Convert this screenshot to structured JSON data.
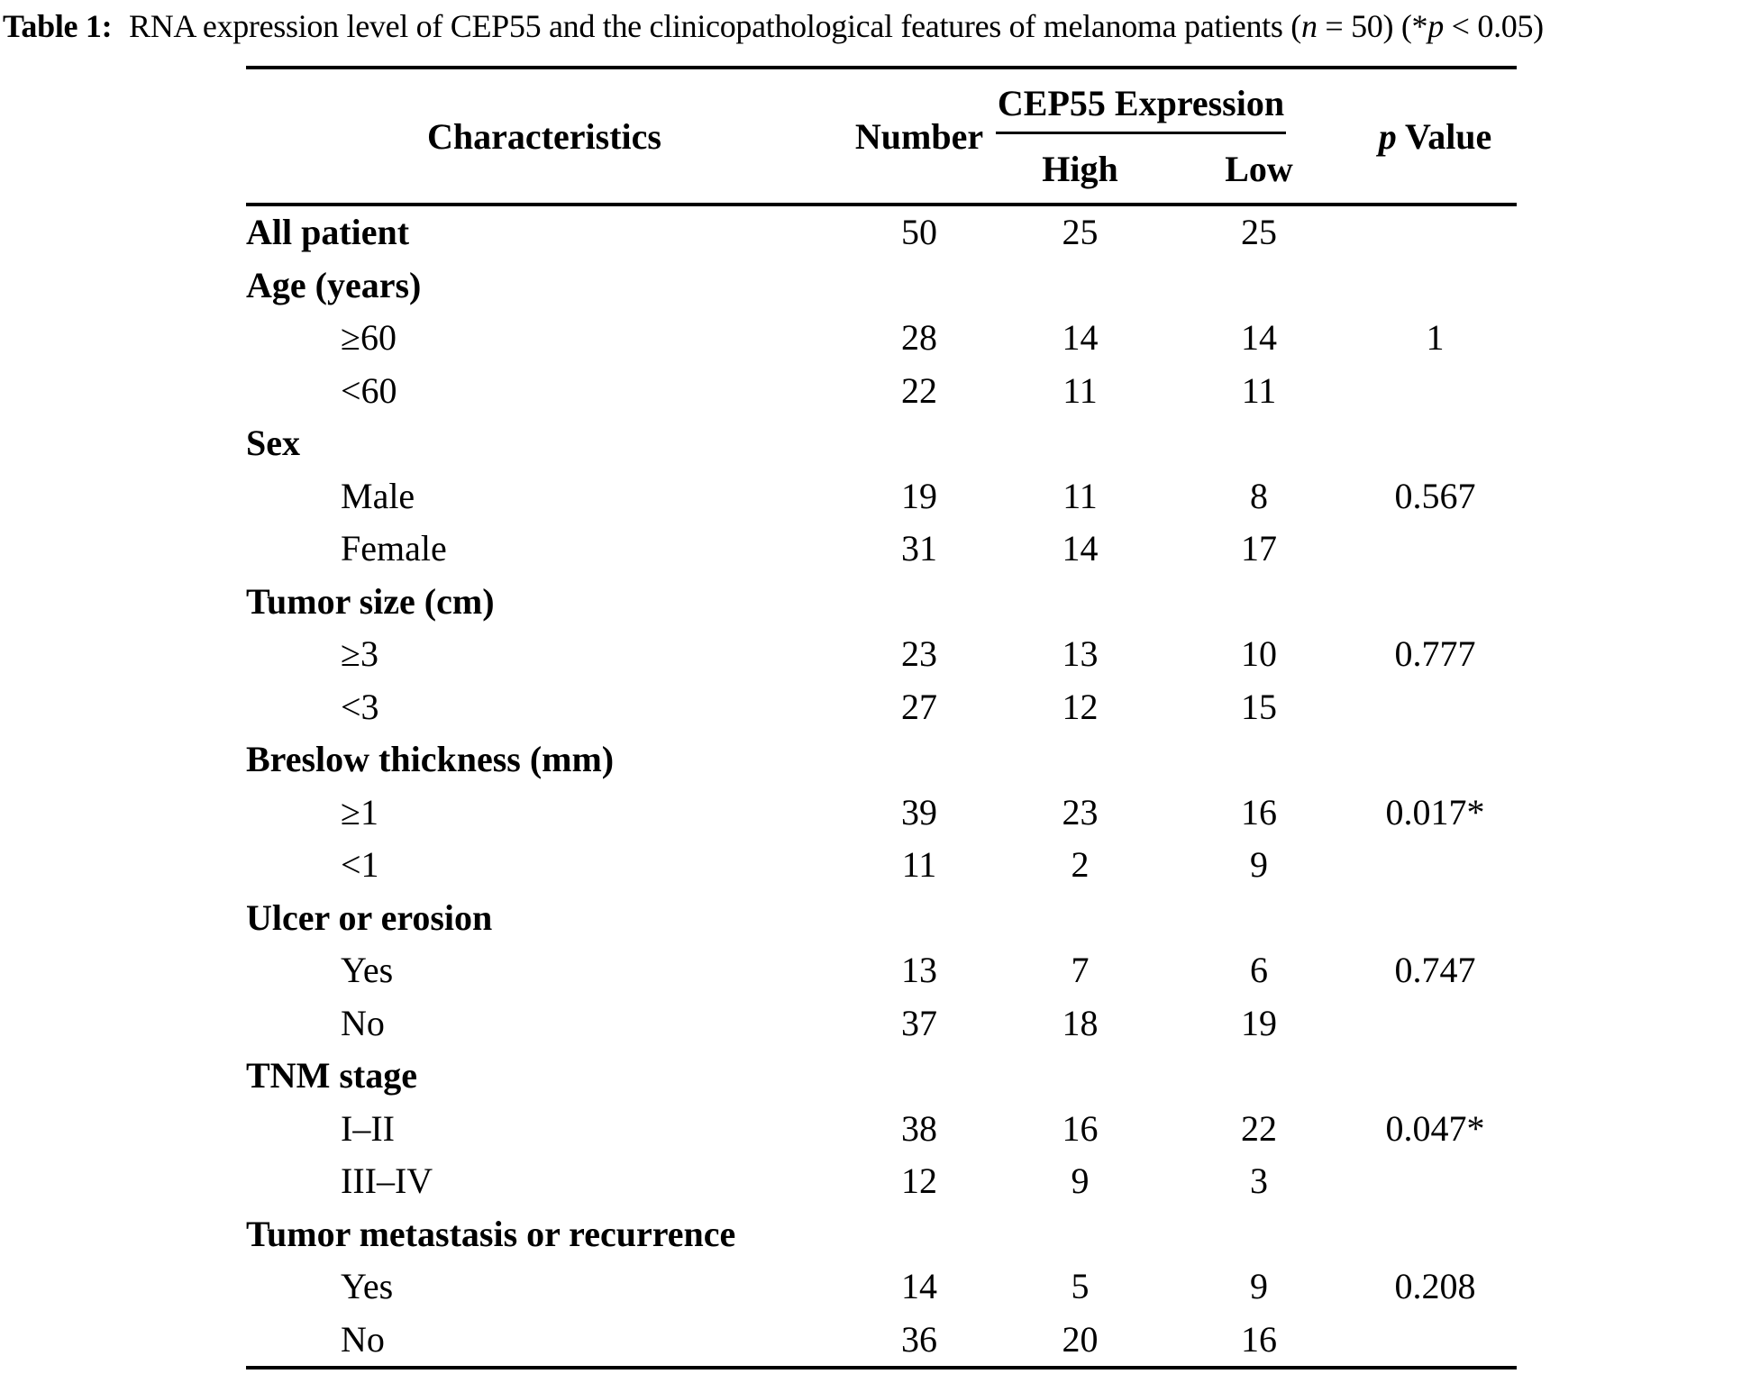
{
  "caption": {
    "parts": [
      {
        "text": "Table 1:",
        "style": "bold"
      },
      {
        "text": " RNA expression level of CEP55 and the clinicopathological features of melanoma patients (",
        "style": "normal"
      },
      {
        "text": "n",
        "style": "italic"
      },
      {
        "text": " = 50) (*",
        "style": "normal"
      },
      {
        "text": "p",
        "style": "italic"
      },
      {
        "text": " < 0.05)",
        "style": "normal"
      }
    ]
  },
  "table": {
    "header": {
      "characteristics": "Characteristics",
      "number": "Number",
      "cep55_group": "CEP55 Expression",
      "high": "High",
      "low": "Low",
      "p_italic": "p",
      "p_rest": " Value"
    },
    "rows": [
      {
        "label": "All patient",
        "section": true,
        "number": "50",
        "high": "25",
        "low": "25",
        "p": ""
      },
      {
        "label": "Age (years)",
        "section": true,
        "number": "",
        "high": "",
        "low": "",
        "p": ""
      },
      {
        "label": "≥60",
        "section": false,
        "number": "28",
        "high": "14",
        "low": "14",
        "p": "1"
      },
      {
        "label": "<60",
        "section": false,
        "number": "22",
        "high": "11",
        "low": "11",
        "p": ""
      },
      {
        "label": "Sex",
        "section": true,
        "number": "",
        "high": "",
        "low": "",
        "p": ""
      },
      {
        "label": "Male",
        "section": false,
        "number": "19",
        "high": "11",
        "low": "8",
        "p": "0.567"
      },
      {
        "label": "Female",
        "section": false,
        "number": "31",
        "high": "14",
        "low": "17",
        "p": ""
      },
      {
        "label": "Tumor size (cm)",
        "section": true,
        "number": "",
        "high": "",
        "low": "",
        "p": ""
      },
      {
        "label": "≥3",
        "section": false,
        "number": "23",
        "high": "13",
        "low": "10",
        "p": "0.777"
      },
      {
        "label": "<3",
        "section": false,
        "number": "27",
        "high": "12",
        "low": "15",
        "p": ""
      },
      {
        "label": "Breslow thickness (mm)",
        "section": true,
        "number": "",
        "high": "",
        "low": "",
        "p": ""
      },
      {
        "label": "≥1",
        "section": false,
        "number": "39",
        "high": "23",
        "low": "16",
        "p": "0.017*"
      },
      {
        "label": "<1",
        "section": false,
        "number": "11",
        "high": "2",
        "low": "9",
        "p": ""
      },
      {
        "label": "Ulcer or erosion",
        "section": true,
        "number": "",
        "high": "",
        "low": "",
        "p": ""
      },
      {
        "label": "Yes",
        "section": false,
        "number": "13",
        "high": "7",
        "low": "6",
        "p": "0.747"
      },
      {
        "label": "No",
        "section": false,
        "number": "37",
        "high": "18",
        "low": "19",
        "p": ""
      },
      {
        "label": "TNM stage",
        "section": true,
        "number": "",
        "high": "",
        "low": "",
        "p": ""
      },
      {
        "label": "I–II",
        "section": false,
        "number": "38",
        "high": "16",
        "low": "22",
        "p": "0.047*"
      },
      {
        "label": "III–IV",
        "section": false,
        "number": "12",
        "high": "9",
        "low": "3",
        "p": ""
      },
      {
        "label": "Tumor metastasis or recurrence",
        "section": true,
        "number": "",
        "high": "",
        "low": "",
        "p": ""
      },
      {
        "label": "Yes",
        "section": false,
        "number": "14",
        "high": "5",
        "low": "9",
        "p": "0.208"
      },
      {
        "label": "No",
        "section": false,
        "number": "36",
        "high": "20",
        "low": "16",
        "p": ""
      }
    ]
  }
}
